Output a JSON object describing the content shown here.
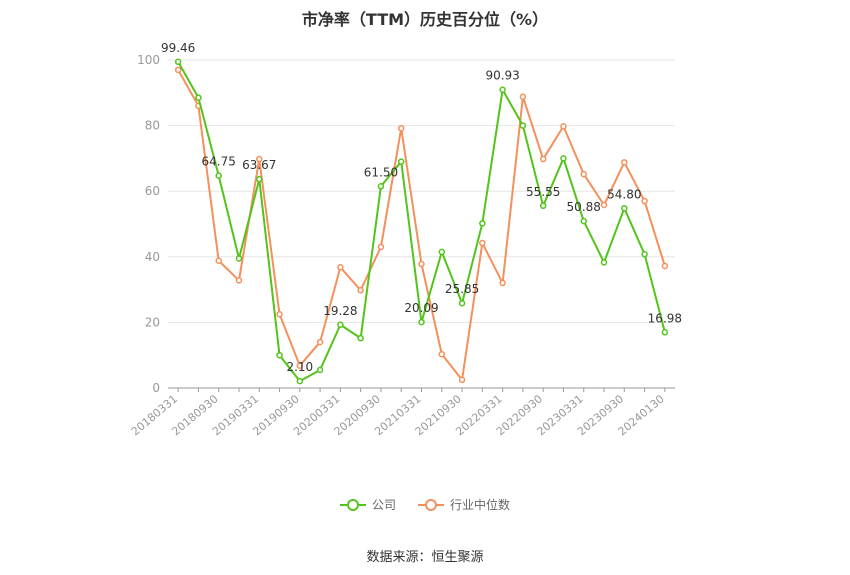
{
  "chart_data": {
    "type": "line",
    "title": "市净率（TTM）历史百分位（%）",
    "ylim": [
      0,
      100
    ],
    "yticks": [
      0,
      20,
      40,
      60,
      80,
      100
    ],
    "x_labels": [
      "20180331",
      "20180930",
      "20190331",
      "20190930",
      "20200331",
      "20200930",
      "20210331",
      "20210930",
      "20220331",
      "20220930",
      "20230331",
      "20230930",
      "20240130"
    ],
    "series": [
      {
        "name": "公司",
        "color": "#52c41a",
        "values": [
          99.46,
          88.5,
          64.75,
          39.5,
          63.67,
          10.0,
          2.1,
          5.5,
          19.28,
          15.2,
          61.5,
          69.0,
          20.09,
          41.5,
          25.85,
          50.2,
          90.93,
          80.0,
          55.55,
          70.0,
          50.88,
          38.3,
          54.8,
          40.8,
          16.98
        ]
      },
      {
        "name": "行业中位数",
        "color": "#f4905c",
        "values": [
          97.0,
          86.0,
          38.8,
          32.8,
          69.8,
          22.5,
          6.8,
          14.0,
          36.8,
          29.8,
          43.0,
          79.2,
          37.8,
          10.3,
          2.5,
          44.2,
          32.0,
          88.8,
          69.8,
          79.8,
          65.2,
          55.8,
          68.8,
          57.0,
          37.2
        ]
      }
    ],
    "data_labels": [
      {
        "index": 0,
        "text": "99.46"
      },
      {
        "index": 2,
        "text": "64.75"
      },
      {
        "index": 4,
        "text": "63.67"
      },
      {
        "index": 6,
        "text": "2.10"
      },
      {
        "index": 8,
        "text": "19.28"
      },
      {
        "index": 10,
        "text": "61.50"
      },
      {
        "index": 12,
        "text": "20.09"
      },
      {
        "index": 14,
        "text": "25.85"
      },
      {
        "index": 16,
        "text": "90.93"
      },
      {
        "index": 18,
        "text": "55.55"
      },
      {
        "index": 20,
        "text": "50.88"
      },
      {
        "index": 22,
        "text": "54.80"
      },
      {
        "index": 24,
        "text": "16.98"
      }
    ],
    "legend_position": "bottom",
    "grid": true
  },
  "legend": {
    "company": "公司",
    "industry": "行业中位数"
  },
  "source": "数据来源：恒生聚源"
}
